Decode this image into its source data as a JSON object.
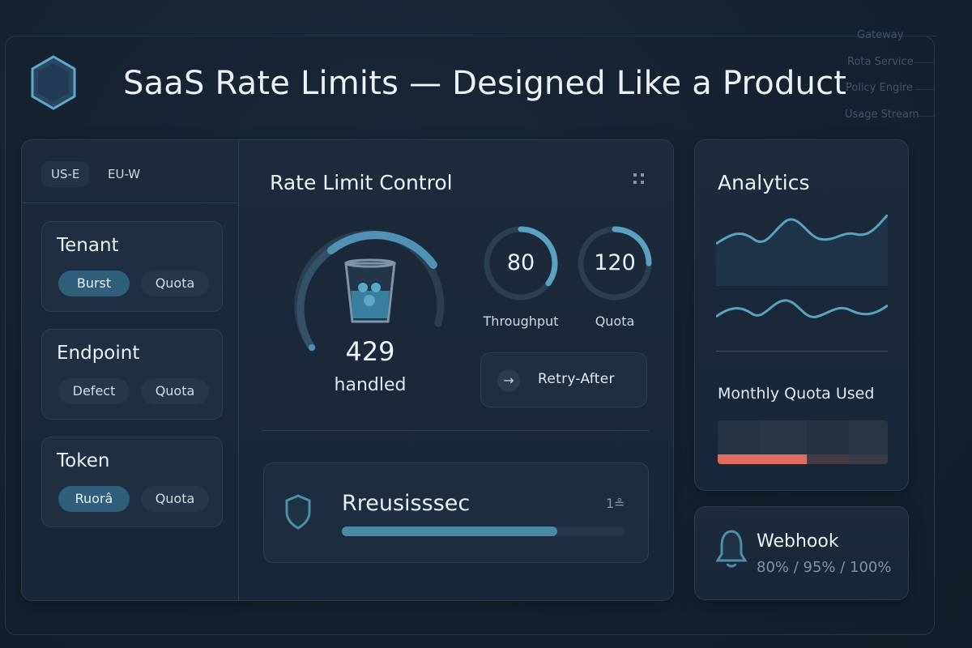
{
  "header": {
    "title": "SaaS Rate Limits — Designed Like a Product",
    "logo_icon": "hexagon-icon"
  },
  "ghost_menu": [
    "Gateway",
    "Rota Service",
    "Policy Engire",
    "Usage Stream"
  ],
  "regions": [
    {
      "label": "US-E",
      "active": true
    },
    {
      "label": "EU-W",
      "active": false
    }
  ],
  "groups": [
    {
      "title": "Tenant",
      "chips": [
        {
          "label": "Burst",
          "active": true
        },
        {
          "label": "Quota",
          "active": false
        }
      ]
    },
    {
      "title": "Endpoint",
      "chips": [
        {
          "label": "Defect",
          "active": false
        },
        {
          "label": "Quota",
          "active": false
        }
      ]
    },
    {
      "title": "Token",
      "chips": [
        {
          "label": "Ruorâ",
          "active": true
        },
        {
          "label": "Quota",
          "active": false
        }
      ]
    }
  ],
  "control": {
    "title": "Rate Limit Control",
    "menu_icon": "grid-dots-icon",
    "gauge": {
      "icon": "bucket-icon",
      "value": "429",
      "label": "handled"
    },
    "rings": [
      {
        "value": "80",
        "label": "Throughput",
        "fraction": 0.35
      },
      {
        "value": "120",
        "label": "Quota",
        "fraction": 0.25
      }
    ],
    "retry_button": {
      "label": "Retry-After",
      "icon": "arrow-right-icon"
    }
  },
  "policy": {
    "label": "Rreusisssec",
    "meta": "1≗",
    "icon": "shield-icon",
    "progress": 0.76
  },
  "analytics": {
    "title": "Analytics",
    "quota_title": "Monthly Quota Used",
    "quota_used_fraction": 0.53,
    "accent": "#e06c5e"
  },
  "webhook": {
    "title": "Webhook",
    "thresholds": "80% / 95% / 100%",
    "icon": "bell-icon"
  }
}
